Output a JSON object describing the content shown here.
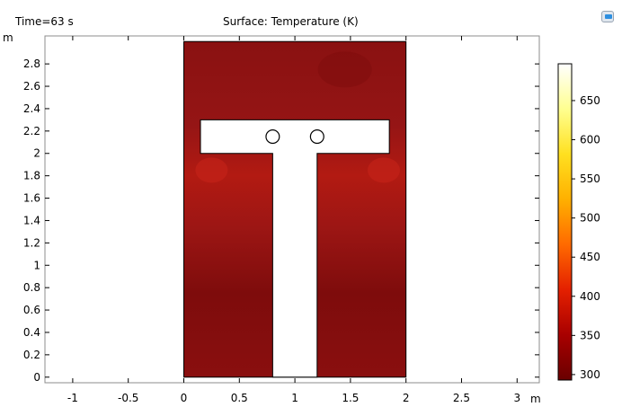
{
  "header": {
    "time_label": "Time=63 s",
    "plot_title": "Surface: Temperature (K)"
  },
  "chart_data": {
    "type": "heatmap",
    "title": "Surface: Temperature (K)",
    "subtitle": "Time=63 s",
    "xlabel": "m",
    "ylabel": "m",
    "xlim": [
      -1.25,
      3.2
    ],
    "ylim": [
      -0.05,
      3.05
    ],
    "x_ticks": [
      -1,
      -0.5,
      0,
      0.5,
      1,
      1.5,
      2,
      2.5,
      3
    ],
    "x_tick_labels": [
      "-1",
      "-0.5",
      "0",
      "0.5",
      "1",
      "1.5",
      "2",
      "2.5",
      "3"
    ],
    "y_ticks": [
      0,
      0.2,
      0.4,
      0.6,
      0.8,
      1,
      1.2,
      1.4,
      1.6,
      1.8,
      2,
      2.2,
      2.4,
      2.6,
      2.8
    ],
    "y_tick_labels": [
      "0",
      "0.2",
      "0.4",
      "0.6",
      "0.8",
      "1",
      "1.2",
      "1.4",
      "1.6",
      "1.8",
      "2",
      "2.2",
      "2.4",
      "2.6",
      "2.8"
    ],
    "domain": {
      "x": [
        0,
        2
      ],
      "y": [
        0,
        3
      ]
    },
    "obstacle_t_shape": {
      "bar": {
        "x": [
          0.15,
          1.85
        ],
        "y": [
          2.0,
          2.3
        ]
      },
      "stem": {
        "x": [
          0.8,
          1.2
        ],
        "y": [
          0,
          2.0
        ]
      }
    },
    "circles": [
      {
        "cx": 0.8,
        "cy": 2.15,
        "r": 0.05
      },
      {
        "cx": 1.2,
        "cy": 2.15,
        "r": 0.05
      }
    ],
    "field_color": "#8e1010",
    "colorbar": {
      "min": 293,
      "max": 697,
      "ticks": [
        300,
        350,
        400,
        450,
        500,
        550,
        600,
        650
      ],
      "tick_labels": [
        "300",
        "350",
        "400",
        "450",
        "500",
        "550",
        "600",
        "650"
      ],
      "colormap": [
        "#6a0000",
        "#a80000",
        "#e42000",
        "#ff6a00",
        "#ffb000",
        "#ffe020",
        "#ffff90",
        "#ffffff"
      ]
    }
  }
}
